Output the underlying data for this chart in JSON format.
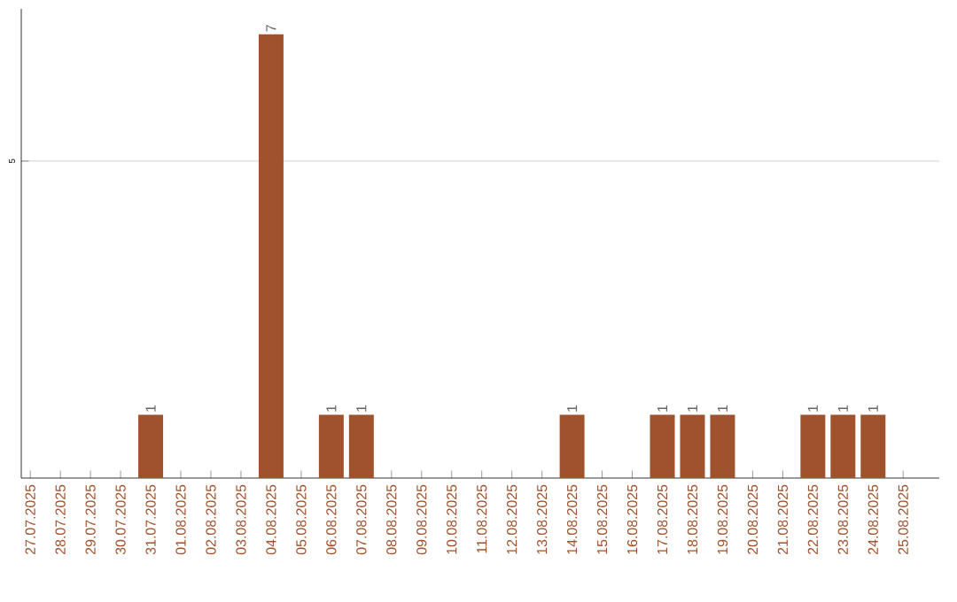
{
  "chart_data": {
    "type": "bar",
    "categories": [
      "27.07.2025",
      "28.07.2025",
      "29.07.2025",
      "30.07.2025",
      "31.07.2025",
      "01.08.2025",
      "02.08.2025",
      "03.08.2025",
      "04.08.2025",
      "05.08.2025",
      "06.08.2025",
      "07.08.2025",
      "08.08.2025",
      "09.08.2025",
      "10.08.2025",
      "11.08.2025",
      "12.08.2025",
      "13.08.2025",
      "14.08.2025",
      "15.08.2025",
      "16.08.2025",
      "17.08.2025",
      "18.08.2025",
      "19.08.2025",
      "20.08.2025",
      "21.08.2025",
      "22.08.2025",
      "23.08.2025",
      "24.08.2025",
      "25.08.2025"
    ],
    "values": [
      0,
      0,
      0,
      0,
      1,
      0,
      0,
      0,
      7,
      0,
      1,
      1,
      0,
      0,
      0,
      0,
      0,
      0,
      1,
      0,
      0,
      1,
      1,
      1,
      0,
      0,
      1,
      1,
      1,
      0
    ],
    "color": "#a0522d",
    "value_labels": [
      null,
      null,
      null,
      null,
      "1",
      null,
      null,
      null,
      "7",
      null,
      "1",
      "1",
      null,
      null,
      null,
      null,
      null,
      null,
      "1",
      null,
      null,
      "1",
      "1",
      "1",
      null,
      null,
      "1",
      "1",
      "1",
      null
    ],
    "ylim": [
      0,
      7.4
    ],
    "yticks": [
      5
    ],
    "grid": "y"
  }
}
